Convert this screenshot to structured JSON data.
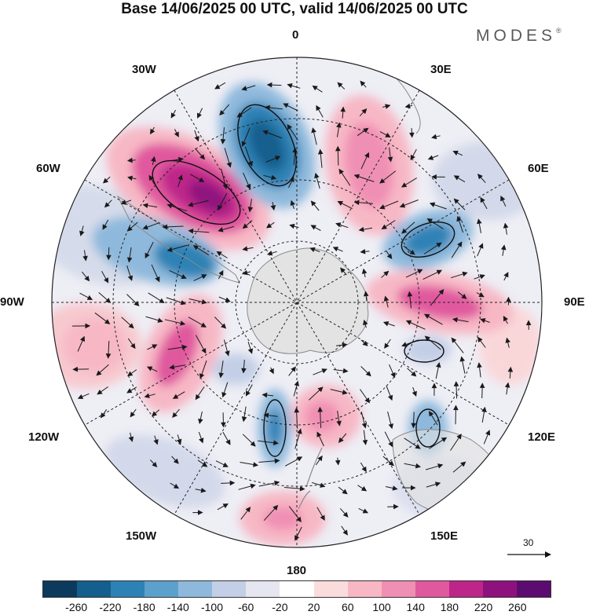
{
  "title": "Base 14/06/2025 00 UTC, valid 14/06/2025 00 UTC",
  "brand": "MODES",
  "brand_mark": "®",
  "longitude_labels": {
    "n": "0",
    "s": "180",
    "w": "90W",
    "e": "90E",
    "w30": "30W",
    "e30": "30E",
    "w60": "60W",
    "e60": "60E",
    "w120": "120W",
    "e120": "120E",
    "w150": "150W",
    "e150": "150E"
  },
  "vector_scale": {
    "label": "30",
    "value": 30
  },
  "colorbar": {
    "ticks": [
      "-260",
      "-220",
      "-180",
      "-140",
      "-100",
      "-60",
      "-20",
      "20",
      "60",
      "100",
      "140",
      "180",
      "220",
      "260"
    ],
    "colors": [
      "#0b3a5c",
      "#155f8e",
      "#2d82b5",
      "#5ca1cb",
      "#8fb9dc",
      "#c3cfe6",
      "#e6e6f1",
      "#ffffff",
      "#fbdcdc",
      "#f7b7c5",
      "#f08fb4",
      "#e0599e",
      "#be2589",
      "#8e127e",
      "#5c0c70"
    ]
  },
  "colors": {
    "land": "#e3e3e3",
    "coast": "#8a8a8a",
    "grid": "#222222",
    "arrow": "#1a1a1a"
  }
}
